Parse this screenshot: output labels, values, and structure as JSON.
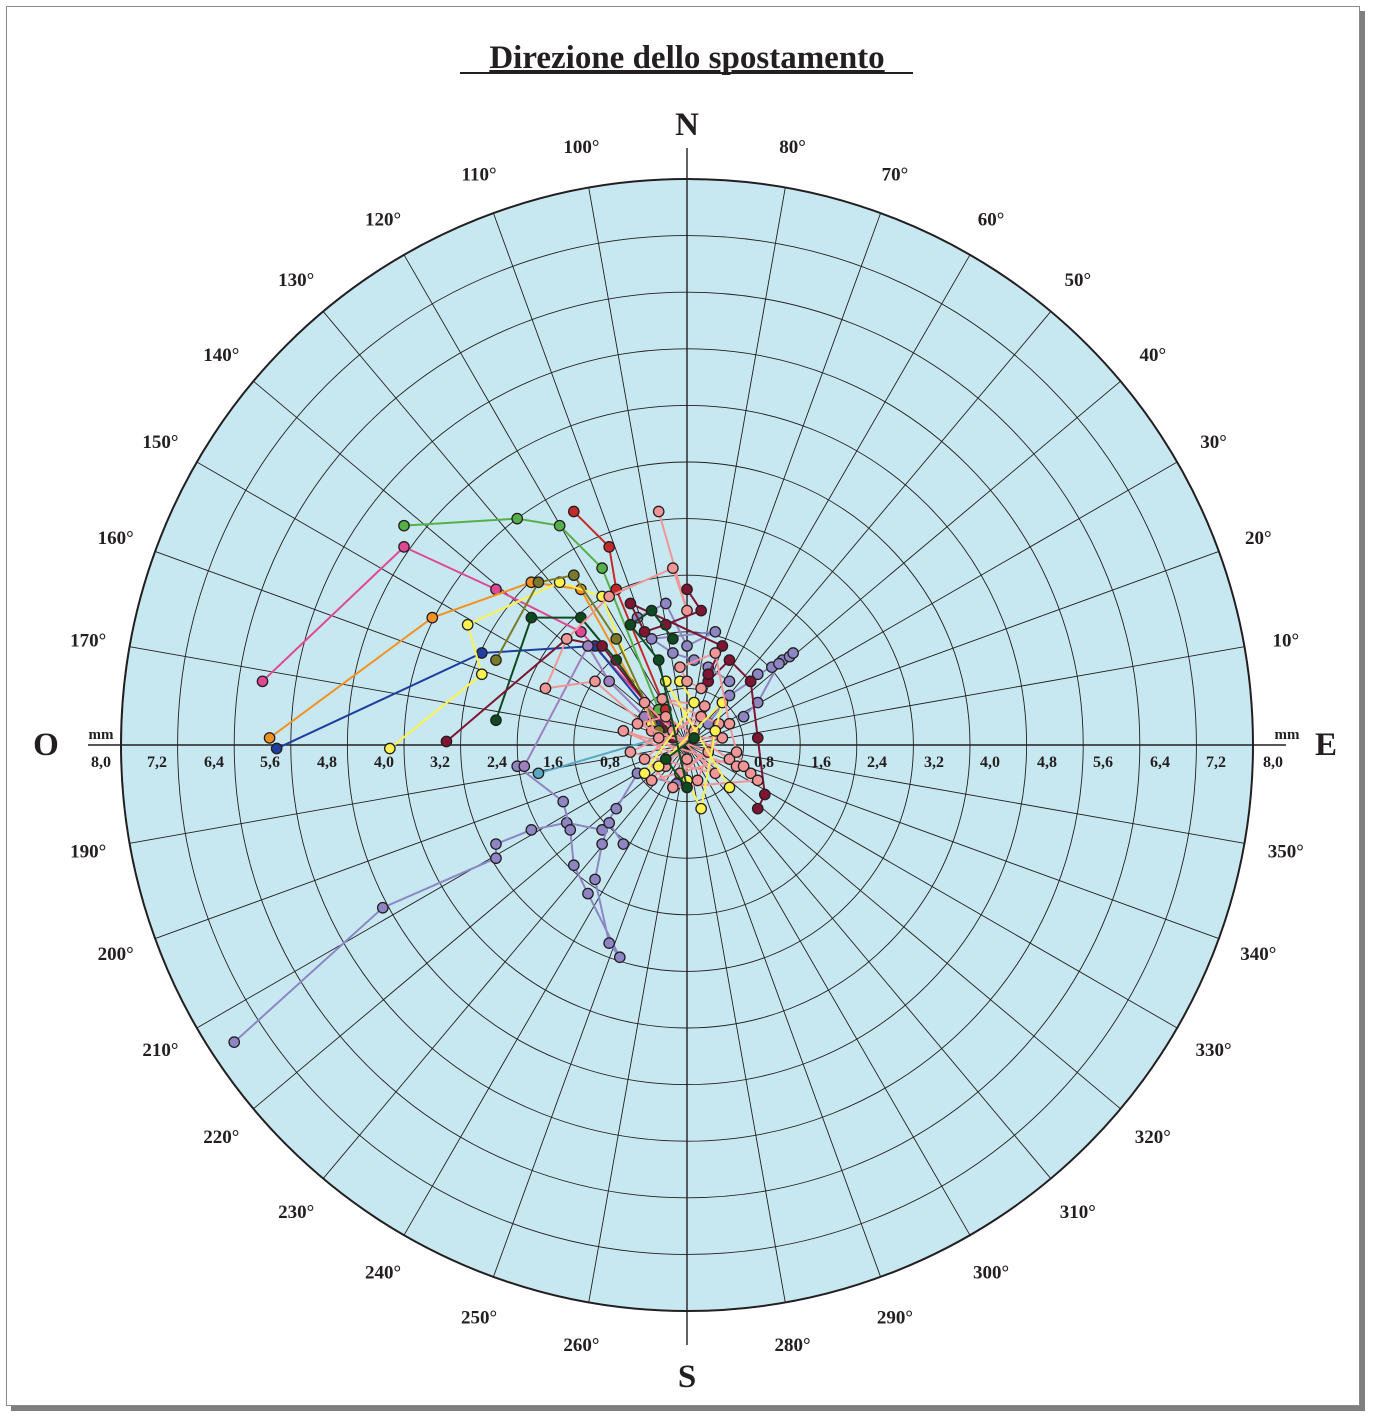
{
  "chart_data": {
    "type": "scatter",
    "title": "Direzione dello spostamento",
    "coordinate_system": "polar",
    "unit": "mm",
    "radius_max": 8.0,
    "radial_ticks": [
      "8,0",
      "7,2",
      "6,4",
      "5,6",
      "4,8",
      "4,0",
      "3,2",
      "2,4",
      "1,6",
      "0,8",
      "0,8",
      "1,6",
      "2,4",
      "3,2",
      "4,0",
      "4,8",
      "5,6",
      "6,4",
      "7,2",
      "8,0"
    ],
    "cardinals": {
      "north": "N",
      "south": "S",
      "west": "O",
      "east": "E"
    },
    "angle_labels": [
      "10°",
      "20°",
      "30°",
      "40°",
      "50°",
      "60°",
      "70°",
      "80°",
      "100°",
      "110°",
      "120°",
      "130°",
      "140°",
      "150°",
      "160°",
      "170°",
      "190°",
      "200°",
      "210°",
      "220°",
      "230°",
      "240°",
      "250°",
      "260°",
      "280°",
      "290°",
      "300°",
      "310°",
      "320°",
      "330°",
      "340°",
      "350°"
    ],
    "background_color": "#c7e8f0",
    "series": [
      {
        "color": "#8e86c4",
        "points": [
          [
            -0.15,
            -0.55
          ],
          [
            -0.7,
            -0.4
          ],
          [
            -1.0,
            -0.9
          ],
          [
            -1.2,
            -1.2
          ],
          [
            -1.7,
            -1.1
          ],
          [
            -2.2,
            -1.2
          ],
          [
            -2.7,
            -1.4
          ],
          [
            -2.7,
            -1.6
          ],
          [
            -4.3,
            -2.3
          ],
          [
            -6.4,
            -4.2
          ]
        ]
      },
      {
        "color": "#8e86c4",
        "points": [
          [
            -0.9,
            -1.4
          ],
          [
            -1.1,
            -1.1
          ],
          [
            -1.2,
            -1.4
          ],
          [
            -1.3,
            -1.9
          ],
          [
            -1.1,
            -2.8
          ],
          [
            -0.95,
            -3.0
          ],
          [
            -1.4,
            -2.1
          ],
          [
            -1.6,
            -1.7
          ],
          [
            -1.65,
            -1.2
          ],
          [
            -1.75,
            -0.8
          ],
          [
            -2.4,
            -0.3
          ]
        ]
      },
      {
        "color": "#8e86c4",
        "points": [
          [
            0.3,
            0.3
          ],
          [
            0.6,
            0.7
          ],
          [
            0.9,
            0.9
          ],
          [
            1.0,
            1.0
          ],
          [
            1.2,
            1.1
          ],
          [
            1.35,
            1.2
          ],
          [
            1.45,
            1.25
          ],
          [
            1.5,
            1.3
          ],
          [
            1.3,
            1.15
          ],
          [
            1.0,
            0.6
          ],
          [
            0.8,
            0.4
          ]
        ]
      },
      {
        "color": "#e14894",
        "points": [
          [
            -0.3,
            0.3
          ],
          [
            -1.5,
            1.6
          ],
          [
            -2.7,
            2.2
          ],
          [
            -4.0,
            2.8
          ],
          [
            -6.0,
            0.9
          ]
        ]
      },
      {
        "color": "#f39222",
        "points": [
          [
            -0.5,
            0.4
          ],
          [
            -1.5,
            2.2
          ],
          [
            -2.2,
            2.3
          ],
          [
            -3.6,
            1.8
          ],
          [
            -5.9,
            0.1
          ]
        ]
      },
      {
        "color": "#1f3f9e",
        "points": [
          [
            -0.4,
            0.3
          ],
          [
            -1.3,
            1.4
          ],
          [
            -2.9,
            1.3
          ],
          [
            -5.8,
            -0.05
          ]
        ]
      },
      {
        "color": "#fef250",
        "points": [
          [
            -0.5,
            0.3
          ],
          [
            -1.2,
            2.1
          ],
          [
            -1.8,
            2.3
          ],
          [
            -3.1,
            1.7
          ],
          [
            -2.9,
            1.0
          ],
          [
            -4.2,
            -0.05
          ]
        ]
      },
      {
        "color": "#56b049",
        "points": [
          [
            -0.4,
            0.5
          ],
          [
            -1.2,
            2.5
          ],
          [
            -1.8,
            3.1
          ],
          [
            -2.4,
            3.2
          ],
          [
            -4.0,
            3.1
          ]
        ]
      },
      {
        "color": "#c52a2a",
        "points": [
          [
            -0.3,
            0.5
          ],
          [
            -1.0,
            2.2
          ],
          [
            -1.1,
            2.8
          ],
          [
            -1.6,
            3.3
          ]
        ]
      },
      {
        "color": "#0e4a1f",
        "points": [
          [
            -0.3,
            0.2
          ],
          [
            -1.0,
            1.2
          ],
          [
            -1.5,
            1.8
          ],
          [
            -2.2,
            1.8
          ],
          [
            -2.7,
            0.35
          ]
        ]
      },
      {
        "color": "#7d1533",
        "points": [
          [
            -0.2,
            0.1
          ],
          [
            -1.2,
            1.4
          ],
          [
            -1.7,
            1.5
          ],
          [
            -3.4,
            0.05
          ]
        ]
      },
      {
        "color": "#7d1533",
        "points": [
          [
            0.3,
            0.9
          ],
          [
            0.6,
            1.2
          ],
          [
            0.9,
            0.9
          ],
          [
            1.0,
            0.1
          ],
          [
            1.1,
            -0.7
          ],
          [
            1.0,
            -0.9
          ]
        ]
      },
      {
        "color": "#59a8c4",
        "points": [
          [
            -0.4,
            0.1
          ],
          [
            -2.1,
            -0.4
          ]
        ]
      },
      {
        "color": "#a07fbf",
        "points": [
          [
            -0.6,
            0.4
          ],
          [
            -1.1,
            0.9
          ],
          [
            -1.4,
            1.4
          ],
          [
            -2.3,
            -0.3
          ]
        ]
      },
      {
        "color": "#f19696",
        "points": [
          [
            -0.5,
            0.2
          ],
          [
            -1.3,
            0.9
          ],
          [
            -2.0,
            0.8
          ],
          [
            -1.7,
            1.5
          ],
          [
            -1.1,
            2.1
          ],
          [
            -0.2,
            2.5
          ],
          [
            0.0,
            1.9
          ],
          [
            -0.4,
            3.3
          ]
        ]
      },
      {
        "color": "#7a7a2a",
        "points": [
          [
            -0.4,
            0.2
          ],
          [
            -1.0,
            1.5
          ],
          [
            -1.6,
            2.4
          ],
          [
            -2.1,
            2.3
          ],
          [
            -2.7,
            1.2
          ]
        ]
      },
      {
        "color": "#f19696",
        "points": [
          [
            0.1,
            0.2
          ],
          [
            -0.3,
            -0.3
          ],
          [
            -0.6,
            0.6
          ],
          [
            -0.2,
            0.2
          ],
          [
            0.4,
            -0.4
          ],
          [
            -0.8,
            -0.1
          ],
          [
            0.2,
            0.4
          ],
          [
            -0.5,
            -0.5
          ],
          [
            0.6,
            -0.2
          ],
          [
            -0.3,
            0.4
          ],
          [
            -0.7,
            0.3
          ],
          [
            0.3,
            -0.1
          ],
          [
            -0.1,
            -0.4
          ],
          [
            0.5,
            0.1
          ],
          [
            -0.4,
            0.1
          ],
          [
            0.0,
            -0.2
          ],
          [
            -0.9,
            0.2
          ],
          [
            0.7,
            -0.3
          ],
          [
            0.9,
            -0.4
          ],
          [
            1.0,
            -0.5
          ],
          [
            -0.2,
            -0.6
          ],
          [
            -0.6,
            -0.2
          ],
          [
            0.25,
            0.55
          ],
          [
            -0.35,
            0.65
          ],
          [
            0.45,
            0.3
          ],
          [
            0.15,
            -0.5
          ]
        ]
      },
      {
        "color": "#fef250",
        "points": [
          [
            0.0,
            -0.5
          ],
          [
            0.2,
            -0.9
          ],
          [
            0.4,
            0.2
          ],
          [
            0.5,
            0.6
          ],
          [
            -0.4,
            -0.3
          ],
          [
            -0.6,
            -0.4
          ],
          [
            0.1,
            0.6
          ],
          [
            -0.1,
            0.9
          ],
          [
            -0.3,
            0.9
          ],
          [
            0.6,
            -0.6
          ]
        ]
      },
      {
        "color": "#8e86c4",
        "points": [
          [
            0.6,
            0.9
          ],
          [
            0.3,
            1.1
          ],
          [
            0.1,
            1.2
          ],
          [
            -0.2,
            1.3
          ],
          [
            -0.5,
            1.5
          ],
          [
            0.4,
            1.6
          ],
          [
            0.0,
            1.4
          ],
          [
            -0.3,
            2.0
          ],
          [
            -0.7,
            1.8
          ]
        ]
      },
      {
        "color": "#7d1533",
        "points": [
          [
            0.0,
            2.2
          ],
          [
            0.2,
            1.9
          ],
          [
            -0.3,
            1.7
          ],
          [
            -0.6,
            1.6
          ],
          [
            -0.8,
            2.0
          ],
          [
            0.5,
            1.4
          ],
          [
            0.3,
            1.0
          ]
        ]
      },
      {
        "color": "#0e4a1f",
        "points": [
          [
            -0.2,
            1.5
          ],
          [
            -0.5,
            1.9
          ],
          [
            -0.8,
            1.7
          ],
          [
            -0.4,
            1.2
          ],
          [
            0.0,
            -0.6
          ],
          [
            -0.3,
            -0.2
          ],
          [
            0.1,
            0.1
          ]
        ]
      },
      {
        "color": "#f19696",
        "points": [
          [
            0.2,
            0.8
          ],
          [
            0.0,
            0.9
          ],
          [
            -0.1,
            1.1
          ],
          [
            0.4,
            1.3
          ],
          [
            0.6,
            0.3
          ],
          [
            0.7,
            -0.1
          ],
          [
            0.8,
            -0.3
          ]
        ]
      }
    ]
  }
}
